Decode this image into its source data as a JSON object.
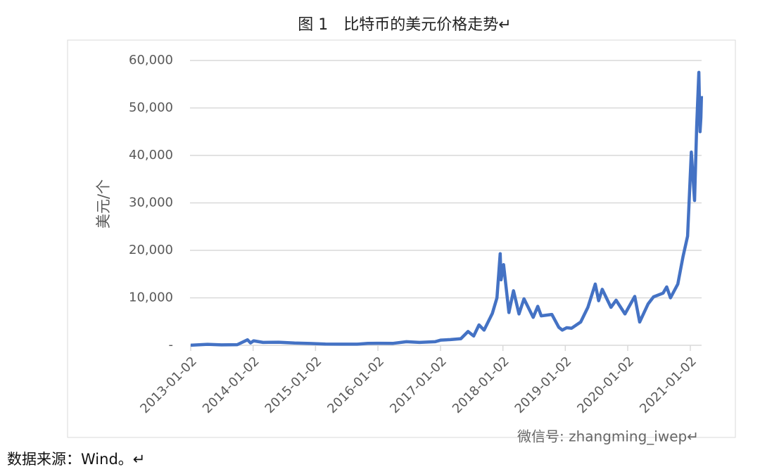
{
  "chart_data": {
    "type": "line",
    "title": "图 1　比特币的美元价格走势↵",
    "y_label": "美元/个",
    "x": [
      "2013-01-02",
      "2013-04-10",
      "2013-07-01",
      "2013-10-01",
      "2013-11-30",
      "2013-12-18",
      "2014-01-05",
      "2014-03-01",
      "2014-06-01",
      "2014-09-01",
      "2014-12-01",
      "2015-03-01",
      "2015-06-01",
      "2015-09-01",
      "2015-11-04",
      "2016-01-01",
      "2016-04-01",
      "2016-06-17",
      "2016-09-01",
      "2016-12-01",
      "2017-01-04",
      "2017-03-01",
      "2017-05-01",
      "2017-06-12",
      "2017-07-15",
      "2017-08-15",
      "2017-09-14",
      "2017-11-01",
      "2017-11-28",
      "2017-12-17",
      "2017-12-22",
      "2018-01-06",
      "2018-02-06",
      "2018-03-05",
      "2018-04-06",
      "2018-05-05",
      "2018-06-28",
      "2018-07-25",
      "2018-08-14",
      "2018-10-15",
      "2018-11-25",
      "2018-12-15",
      "2019-01-10",
      "2019-02-08",
      "2019-04-02",
      "2019-05-14",
      "2019-06-26",
      "2019-07-16",
      "2019-08-06",
      "2019-09-26",
      "2019-10-26",
      "2019-12-17",
      "2020-02-12",
      "2020-03-12",
      "2020-04-30",
      "2020-06-01",
      "2020-07-27",
      "2020-08-17",
      "2020-09-08",
      "2020-10-21",
      "2020-11-20",
      "2020-12-17",
      "2021-01-08",
      "2021-01-27",
      "2021-02-08",
      "2021-02-21",
      "2021-02-28",
      "2021-03-05",
      "2021-03-08"
    ],
    "series": [
      {
        "name": "比特币",
        "color": "#4472c4",
        "values": [
          13,
          200,
          90,
          130,
          1150,
          500,
          950,
          600,
          650,
          480,
          380,
          260,
          230,
          230,
          400,
          430,
          420,
          750,
          600,
          750,
          1100,
          1200,
          1400,
          2900,
          1950,
          4300,
          3200,
          6700,
          10000,
          19300,
          13800,
          17000,
          6900,
          11500,
          6600,
          9800,
          5900,
          8200,
          6200,
          6500,
          3800,
          3200,
          3700,
          3600,
          4900,
          8000,
          12900,
          9400,
          11800,
          8000,
          9500,
          6600,
          10300,
          4900,
          8700,
          10200,
          11000,
          12300,
          10000,
          12900,
          18600,
          23000,
          40700,
          30500,
          46000,
          57500,
          45000,
          48000,
          52500
        ]
      }
    ],
    "xlim": [
      "2013-01-02",
      "2021-03-09"
    ],
    "xticks": [
      "2013-01-02",
      "2014-01-02",
      "2015-01-02",
      "2016-01-02",
      "2017-01-02",
      "2018-01-02",
      "2019-01-02",
      "2020-01-02",
      "2021-01-02"
    ],
    "ylim": [
      0,
      60000
    ],
    "yticks": [
      {
        "value": 0,
        "label": "-"
      },
      {
        "value": 10000,
        "label": "10,000"
      },
      {
        "value": 20000,
        "label": "20,000"
      },
      {
        "value": 30000,
        "label": "30,000"
      },
      {
        "value": 40000,
        "label": "40,000"
      },
      {
        "value": 50000,
        "label": "50,000"
      },
      {
        "value": 60000,
        "label": "60,000"
      }
    ],
    "grid": true
  },
  "watermark": "微信号: zhangming_iwep↵",
  "source": "数据来源：Wind。↵"
}
